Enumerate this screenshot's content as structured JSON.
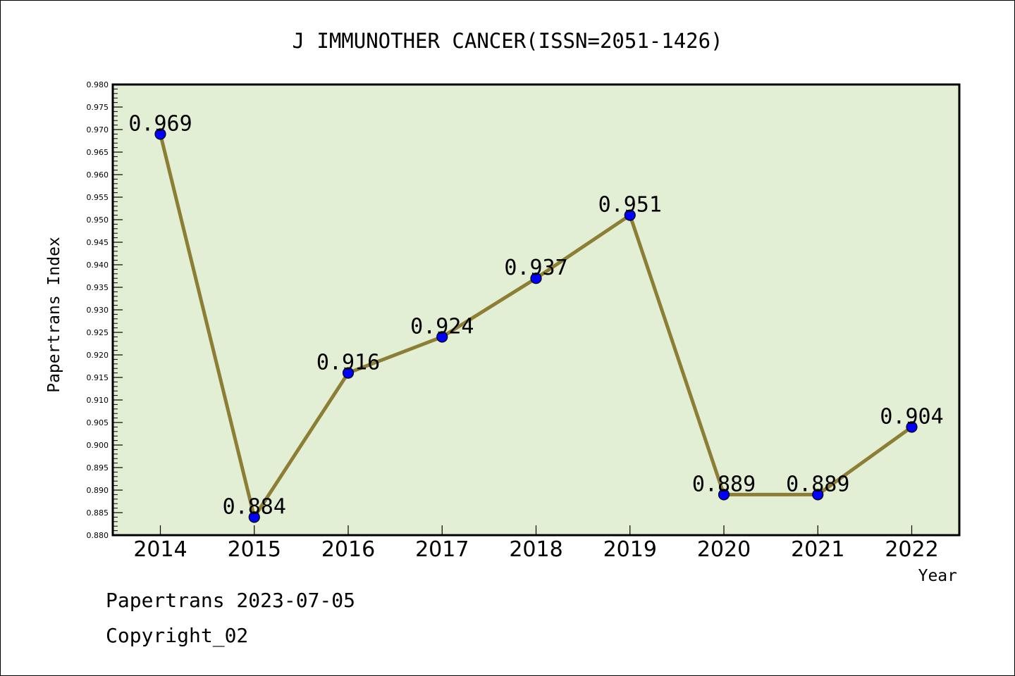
{
  "chart_data": {
    "type": "line",
    "title": "J IMMUNOTHER CANCER(ISSN=2051-1426)",
    "xlabel": "Year",
    "ylabel": "Papertrans Index",
    "categories": [
      "2014",
      "2015",
      "2016",
      "2017",
      "2018",
      "2019",
      "2020",
      "2021",
      "2022"
    ],
    "values": [
      0.969,
      0.884,
      0.916,
      0.924,
      0.937,
      0.951,
      0.889,
      0.889,
      0.904
    ],
    "data_labels": [
      "0.969",
      "0.884",
      "0.916",
      "0.924",
      "0.937",
      "0.951",
      "0.889",
      "0.889",
      "0.904"
    ],
    "ylim": [
      0.88,
      0.98
    ],
    "yticks": [
      "0.880",
      "0.885",
      "0.890",
      "0.895",
      "0.900",
      "0.905",
      "0.910",
      "0.915",
      "0.920",
      "0.925",
      "0.930",
      "0.935",
      "0.940",
      "0.945",
      "0.950",
      "0.955",
      "0.960",
      "0.965",
      "0.970",
      "0.975",
      "0.980"
    ],
    "grid": false,
    "colors": {
      "plot_background": "#e2efd5",
      "line": "#8c7f35",
      "marker": "#0000ff"
    }
  },
  "footer": {
    "line1": "Papertrans 2023-07-05",
    "line2": "Copyright_02"
  }
}
